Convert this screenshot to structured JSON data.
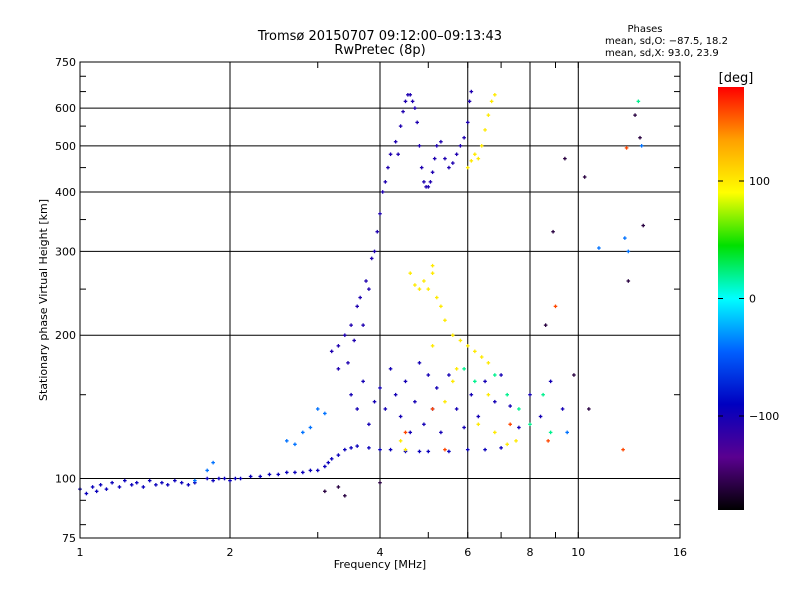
{
  "chart_data": {
    "type": "scatter",
    "title": "Tromsø 20150707 09:12:00–09:13:43",
    "subtitle": "RwPretec (8p)",
    "xlabel": "Frequency [MHz]",
    "ylabel": "Stationary phase Virtual Height [km]",
    "x_scale": "log",
    "y_scale": "log",
    "xlim": [
      1,
      16
    ],
    "ylim": [
      75,
      750
    ],
    "x_ticks": [
      1,
      2,
      4,
      6,
      8,
      10,
      16
    ],
    "x_tick_labels": [
      "1",
      "2",
      "4",
      "6",
      "8",
      "10",
      "16"
    ],
    "y_ticks": [
      75,
      100,
      200,
      300,
      400,
      500,
      600,
      750
    ],
    "y_tick_labels": [
      "75",
      "100",
      "200",
      "300",
      "400",
      "500",
      "600",
      "750"
    ],
    "grid": true,
    "stats": {
      "heading": "Phases",
      "line1": "mean, sd,O: −87.5, 18.2",
      "line2": "mean, sd,X:  93.0, 23.9"
    },
    "colorbar": {
      "label": "[deg]",
      "range": [
        -180,
        180
      ],
      "ticks": [
        100,
        0,
        -100
      ],
      "tick_labels": [
        "100",
        "0",
        "−100"
      ],
      "colors": [
        "#ff0000",
        "#ffa000",
        "#ffff00",
        "#00e000",
        "#00ffff",
        "#0060ff",
        "#0000c0",
        "#5a0090",
        "#000000"
      ]
    },
    "series": [
      {
        "phase": -95,
        "points": [
          [
            1.0,
            95
          ],
          [
            1.03,
            93
          ],
          [
            1.06,
            96
          ],
          [
            1.08,
            94
          ],
          [
            1.1,
            97
          ],
          [
            1.13,
            95
          ],
          [
            1.16,
            98
          ],
          [
            1.2,
            96
          ],
          [
            1.23,
            99
          ],
          [
            1.27,
            97
          ],
          [
            1.3,
            98
          ],
          [
            1.34,
            96
          ],
          [
            1.38,
            99
          ],
          [
            1.42,
            97
          ],
          [
            1.46,
            98
          ],
          [
            1.5,
            97
          ],
          [
            1.55,
            99
          ],
          [
            1.6,
            98
          ],
          [
            1.65,
            97
          ],
          [
            1.7,
            98
          ],
          [
            1.8,
            100
          ],
          [
            1.85,
            99
          ],
          [
            1.9,
            100
          ],
          [
            1.95,
            100
          ],
          [
            2.0,
            99
          ],
          [
            2.05,
            100
          ],
          [
            2.1,
            100
          ],
          [
            2.2,
            101
          ],
          [
            2.3,
            101
          ],
          [
            2.4,
            102
          ],
          [
            2.5,
            102
          ],
          [
            2.6,
            103
          ],
          [
            2.7,
            103
          ],
          [
            2.8,
            103
          ],
          [
            2.9,
            104
          ],
          [
            3.0,
            104
          ],
          [
            3.1,
            106
          ],
          [
            3.15,
            108
          ],
          [
            3.2,
            110
          ],
          [
            3.3,
            112
          ],
          [
            3.4,
            115
          ],
          [
            3.5,
            116
          ],
          [
            3.6,
            117
          ],
          [
            3.8,
            116
          ],
          [
            4.0,
            115
          ],
          [
            4.2,
            115
          ],
          [
            4.5,
            114
          ],
          [
            4.8,
            114
          ],
          [
            5.0,
            114
          ],
          [
            5.5,
            114
          ],
          [
            6.0,
            115
          ],
          [
            6.5,
            115
          ],
          [
            7.0,
            116
          ]
        ]
      },
      {
        "phase": -105,
        "points": [
          [
            3.2,
            185
          ],
          [
            3.3,
            170
          ],
          [
            3.3,
            190
          ],
          [
            3.4,
            200
          ],
          [
            3.45,
            175
          ],
          [
            3.5,
            210
          ],
          [
            3.55,
            195
          ],
          [
            3.6,
            230
          ],
          [
            3.65,
            240
          ],
          [
            3.7,
            210
          ],
          [
            3.75,
            260
          ],
          [
            3.8,
            250
          ],
          [
            3.85,
            290
          ],
          [
            3.9,
            300
          ],
          [
            3.95,
            330
          ],
          [
            4.0,
            360
          ],
          [
            4.05,
            400
          ],
          [
            4.1,
            420
          ],
          [
            4.15,
            450
          ],
          [
            4.2,
            480
          ],
          [
            4.3,
            510
          ],
          [
            4.35,
            480
          ],
          [
            4.4,
            550
          ],
          [
            4.45,
            590
          ],
          [
            4.5,
            620
          ],
          [
            4.55,
            640
          ],
          [
            4.6,
            640
          ],
          [
            4.65,
            620
          ],
          [
            4.7,
            600
          ],
          [
            4.75,
            560
          ],
          [
            4.8,
            500
          ],
          [
            4.85,
            450
          ],
          [
            4.9,
            420
          ],
          [
            4.95,
            410
          ],
          [
            5.0,
            410
          ],
          [
            5.05,
            420
          ],
          [
            5.1,
            440
          ],
          [
            5.15,
            470
          ],
          [
            5.2,
            500
          ],
          [
            5.3,
            510
          ],
          [
            5.4,
            470
          ],
          [
            5.5,
            450
          ],
          [
            5.6,
            460
          ],
          [
            5.7,
            480
          ],
          [
            5.8,
            500
          ],
          [
            5.9,
            520
          ],
          [
            6.0,
            560
          ],
          [
            6.05,
            620
          ],
          [
            6.1,
            650
          ]
        ]
      },
      {
        "phase": -100,
        "points": [
          [
            3.5,
            150
          ],
          [
            3.6,
            140
          ],
          [
            3.7,
            160
          ],
          [
            3.8,
            130
          ],
          [
            3.9,
            145
          ],
          [
            4.0,
            155
          ],
          [
            4.1,
            140
          ],
          [
            4.2,
            170
          ],
          [
            4.3,
            150
          ],
          [
            4.4,
            135
          ],
          [
            4.5,
            160
          ],
          [
            4.6,
            125
          ],
          [
            4.7,
            145
          ],
          [
            4.8,
            175
          ],
          [
            4.9,
            130
          ],
          [
            5.0,
            165
          ],
          [
            5.1,
            140
          ],
          [
            5.2,
            155
          ],
          [
            5.3,
            125
          ],
          [
            5.5,
            165
          ],
          [
            5.7,
            140
          ],
          [
            5.9,
            128
          ],
          [
            6.1,
            150
          ],
          [
            6.3,
            135
          ],
          [
            6.5,
            160
          ],
          [
            6.8,
            145
          ],
          [
            7.0,
            165
          ],
          [
            7.3,
            142
          ],
          [
            7.6,
            128
          ],
          [
            8.0,
            150
          ],
          [
            8.4,
            135
          ],
          [
            8.8,
            160
          ],
          [
            9.3,
            140
          ]
        ]
      },
      {
        "phase": 100,
        "points": [
          [
            4.6,
            270
          ],
          [
            4.7,
            255
          ],
          [
            4.8,
            250
          ],
          [
            4.9,
            260
          ],
          [
            5.0,
            250
          ],
          [
            5.1,
            270
          ],
          [
            5.2,
            240
          ],
          [
            5.1,
            280
          ],
          [
            5.3,
            230
          ],
          [
            5.4,
            215
          ],
          [
            5.6,
            200
          ],
          [
            5.8,
            195
          ],
          [
            6.0,
            190
          ],
          [
            6.2,
            185
          ],
          [
            6.4,
            180
          ],
          [
            6.6,
            175
          ],
          [
            6.2,
            480
          ],
          [
            6.3,
            470
          ],
          [
            6.4,
            500
          ],
          [
            6.5,
            540
          ],
          [
            6.6,
            580
          ],
          [
            6.7,
            620
          ],
          [
            6.8,
            640
          ],
          [
            6.0,
            450
          ],
          [
            6.1,
            465
          ],
          [
            5.1,
            190
          ],
          [
            5.6,
            160
          ],
          [
            6.3,
            130
          ],
          [
            6.8,
            125
          ],
          [
            7.2,
            118
          ],
          [
            7.5,
            120
          ],
          [
            4.5,
            115
          ],
          [
            5.7,
            170
          ],
          [
            6.6,
            150
          ],
          [
            5.4,
            145
          ],
          [
            4.4,
            120
          ]
        ]
      },
      {
        "phase": 20,
        "points": [
          [
            6.2,
            160
          ],
          [
            6.8,
            165
          ],
          [
            7.2,
            150
          ],
          [
            7.6,
            140
          ],
          [
            8.0,
            130
          ],
          [
            5.9,
            170
          ],
          [
            8.5,
            150
          ],
          [
            8.8,
            125
          ],
          [
            13.2,
            620
          ]
        ]
      },
      {
        "phase": 160,
        "points": [
          [
            4.5,
            125
          ],
          [
            5.4,
            115
          ],
          [
            5.1,
            140
          ],
          [
            7.3,
            130
          ],
          [
            9.0,
            230
          ],
          [
            12.5,
            495
          ],
          [
            12.3,
            115
          ],
          [
            8.7,
            120
          ]
        ]
      },
      {
        "phase": -160,
        "points": [
          [
            8.6,
            210
          ],
          [
            8.9,
            330
          ],
          [
            9.4,
            470
          ],
          [
            10.3,
            430
          ],
          [
            12.6,
            260
          ],
          [
            13.0,
            580
          ],
          [
            13.3,
            520
          ],
          [
            13.5,
            340
          ],
          [
            9.8,
            165
          ],
          [
            10.5,
            140
          ],
          [
            3.1,
            94
          ],
          [
            3.3,
            96
          ],
          [
            3.4,
            92
          ],
          [
            4.0,
            98
          ]
        ]
      },
      {
        "phase": -40,
        "points": [
          [
            1.7,
            99
          ],
          [
            1.8,
            104
          ],
          [
            1.85,
            108
          ],
          [
            2.6,
            120
          ],
          [
            2.7,
            118
          ],
          [
            2.8,
            125
          ],
          [
            2.9,
            128
          ],
          [
            3.0,
            140
          ],
          [
            3.1,
            137
          ],
          [
            12.4,
            320
          ],
          [
            12.6,
            300
          ],
          [
            13.4,
            500
          ],
          [
            9.5,
            125
          ],
          [
            11.0,
            305
          ]
        ]
      }
    ]
  }
}
